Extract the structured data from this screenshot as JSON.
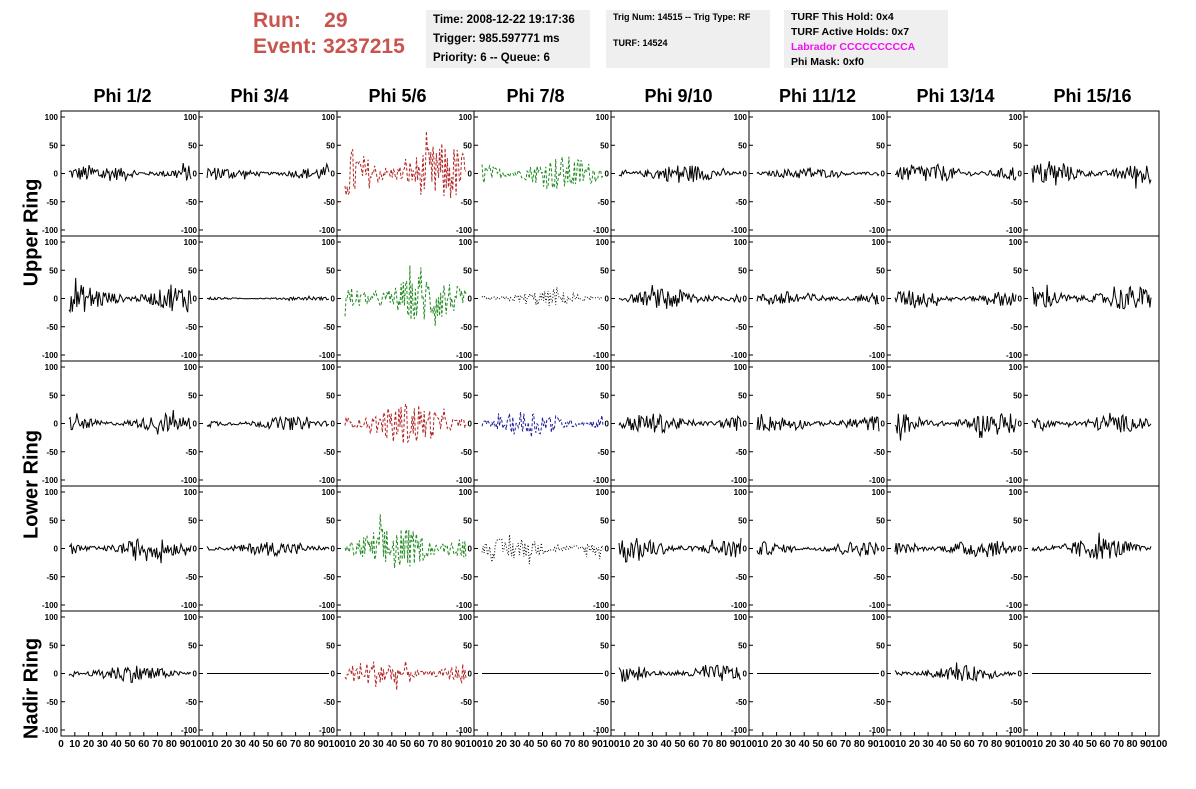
{
  "header": {
    "run_label": "Run:",
    "run_value": "29",
    "event_label": "Event:",
    "event_value": "3237215"
  },
  "info_box_1": {
    "time": "Time: 2008-12-22 19:17:36",
    "trigger": "Trigger: 985.597771 ms",
    "priority": "Priority: 6 -- Queue: 6"
  },
  "info_box_2": {
    "trig": "Trig Num: 14515 -- Trig Type: RF",
    "turf": "TURF: 14524"
  },
  "info_box_3": {
    "this_hold": "TURF This Hold: 0x4",
    "active_holds": "TURF Active Holds: 0x7",
    "labrador": "Labrador CCCCCCCCCA",
    "phi_mask": "Phi Mask: 0xf0"
  },
  "columns": [
    "Phi 1/2",
    "Phi 3/4",
    "Phi 5/6",
    "Phi 7/8",
    "Phi 9/10",
    "Phi 11/12",
    "Phi 13/14",
    "Phi 15/16"
  ],
  "row_groups": [
    "Upper Ring",
    "Lower Ring",
    "Nadir Ring"
  ],
  "colors": {
    "black": "#000000",
    "red": "#b22222",
    "green": "#228b22",
    "blue": "#1f1f9a",
    "header_red": "#c9544d",
    "magenta": "#f010f0"
  },
  "chart_data": {
    "type": "line",
    "grid": false,
    "ylim": [
      -100,
      100
    ],
    "xlim": [
      0,
      100
    ],
    "y_ticks": [
      "100",
      "50",
      "0",
      "-50",
      "-100"
    ],
    "x_ticks": [
      "0",
      "10",
      "20",
      "30",
      "40",
      "50",
      "60",
      "70",
      "80",
      "90",
      "100"
    ],
    "panels": [
      [
        {
          "color": "black",
          "amp": 16,
          "style": "solid"
        },
        {
          "color": "black",
          "amp": 12,
          "style": "solid"
        },
        {
          "color": "red",
          "amp": 55,
          "style": "dashed"
        },
        {
          "color": "green",
          "amp": 32,
          "style": "dashed"
        },
        {
          "color": "black",
          "amp": 17,
          "style": "solid"
        },
        {
          "color": "black",
          "amp": 10,
          "style": "solid"
        },
        {
          "color": "black",
          "amp": 18,
          "style": "solid"
        },
        {
          "color": "black",
          "amp": 20,
          "style": "solid"
        }
      ],
      [
        {
          "color": "black",
          "amp": 25,
          "style": "solid"
        },
        {
          "color": "black",
          "amp": 3,
          "style": "solid"
        },
        {
          "color": "green",
          "amp": 45,
          "style": "dashed"
        },
        {
          "color": "black",
          "amp": 14,
          "style": "dotted"
        },
        {
          "color": "black",
          "amp": 18,
          "style": "solid"
        },
        {
          "color": "black",
          "amp": 13,
          "style": "solid"
        },
        {
          "color": "black",
          "amp": 15,
          "style": "solid"
        },
        {
          "color": "black",
          "amp": 22,
          "style": "solid"
        }
      ],
      [
        {
          "color": "black",
          "amp": 15,
          "style": "solid"
        },
        {
          "color": "black",
          "amp": 12,
          "style": "solid"
        },
        {
          "color": "red",
          "amp": 38,
          "style": "dashed"
        },
        {
          "color": "blue",
          "amp": 24,
          "style": "dashed"
        },
        {
          "color": "black",
          "amp": 18,
          "style": "solid"
        },
        {
          "color": "black",
          "amp": 14,
          "style": "solid"
        },
        {
          "color": "black",
          "amp": 20,
          "style": "solid"
        },
        {
          "color": "black",
          "amp": 16,
          "style": "solid"
        }
      ],
      [
        {
          "color": "black",
          "amp": 18,
          "style": "solid"
        },
        {
          "color": "black",
          "amp": 13,
          "style": "solid"
        },
        {
          "color": "green",
          "amp": 42,
          "style": "dashed"
        },
        {
          "color": "black",
          "amp": 20,
          "style": "dotted"
        },
        {
          "color": "black",
          "amp": 19,
          "style": "solid"
        },
        {
          "color": "black",
          "amp": 13,
          "style": "solid"
        },
        {
          "color": "black",
          "amp": 16,
          "style": "solid"
        },
        {
          "color": "black",
          "amp": 20,
          "style": "solid"
        }
      ],
      [
        {
          "color": "black",
          "amp": 16,
          "style": "solid"
        },
        {
          "color": "black",
          "amp": 0,
          "style": "solid"
        },
        {
          "color": "red",
          "amp": 24,
          "style": "dashed"
        },
        {
          "color": "black",
          "amp": 0,
          "style": "solid"
        },
        {
          "color": "black",
          "amp": 15,
          "style": "solid"
        },
        {
          "color": "black",
          "amp": 0,
          "style": "solid"
        },
        {
          "color": "black",
          "amp": 14,
          "style": "solid"
        },
        {
          "color": "black",
          "amp": 0,
          "style": "solid"
        }
      ]
    ]
  }
}
